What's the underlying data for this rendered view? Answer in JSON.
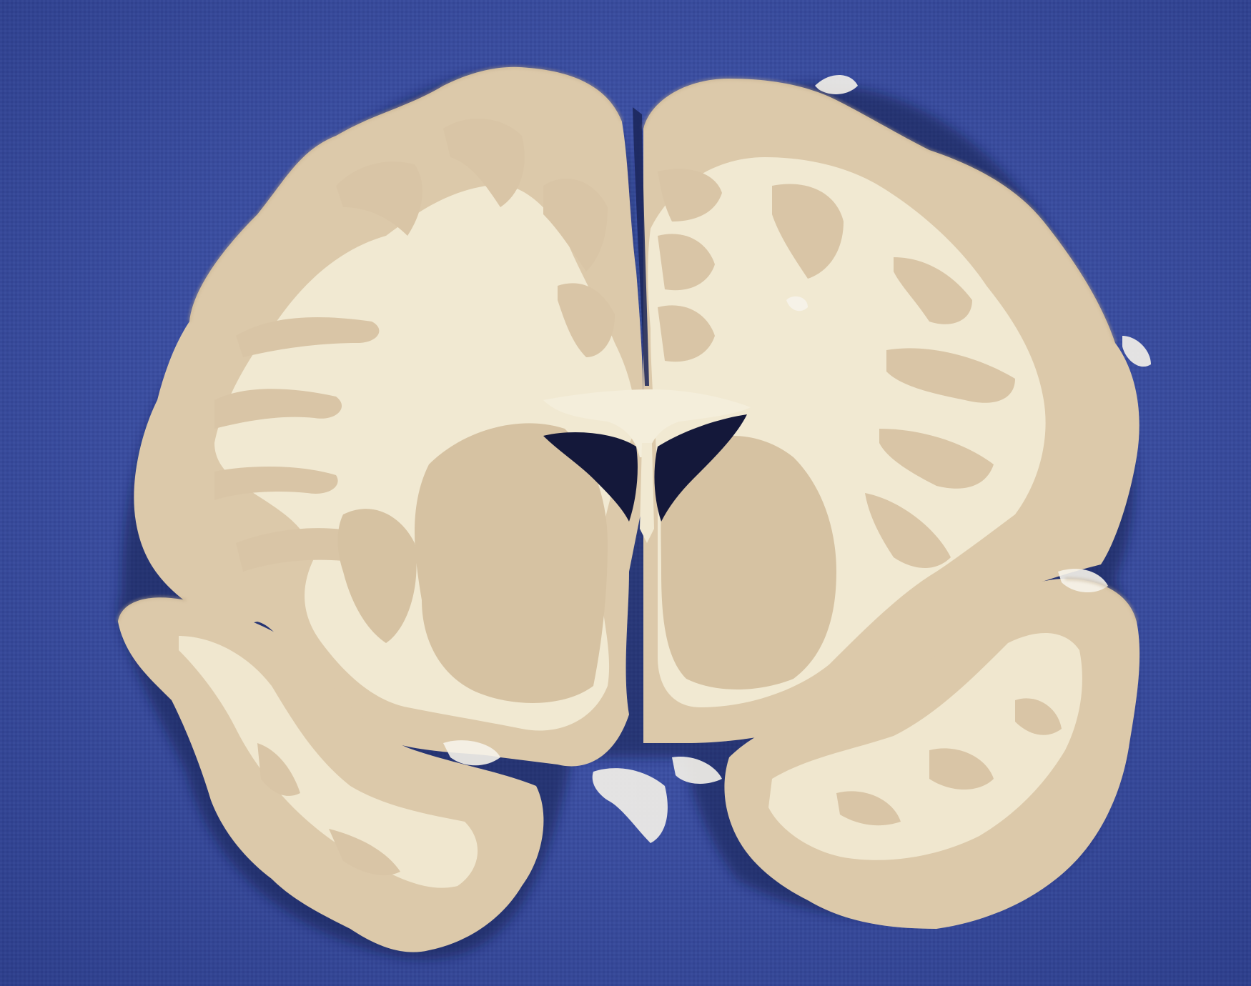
{
  "colors": {
    "cloth_base": "#3a4fa6",
    "cloth_light": "#5367bd",
    "cloth_dark": "#2c3d88",
    "white_matter": "#f1e9d2",
    "gray_matter": "#d9c5a6",
    "gray_matter_dark": "#c9b493",
    "ventricle": "#14183a",
    "membrane": "#f6f3ea"
  }
}
